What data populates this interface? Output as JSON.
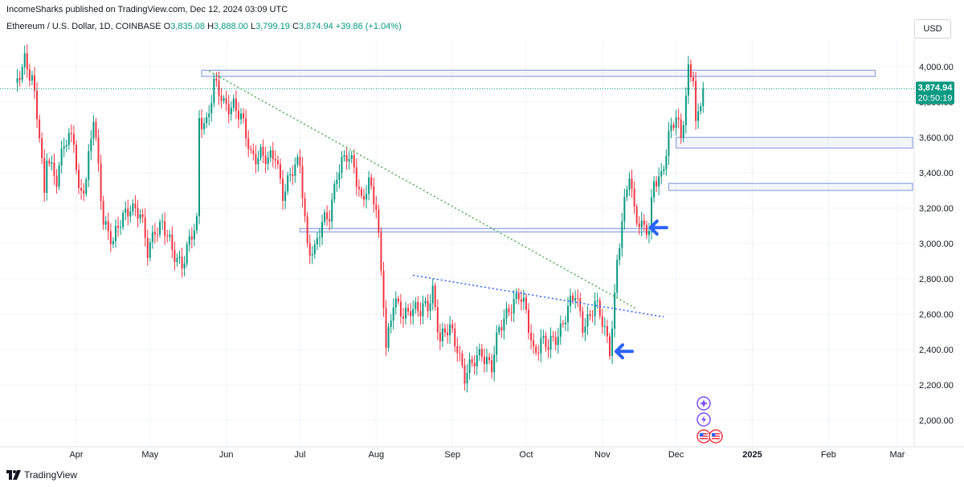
{
  "header": {
    "publisher": "IncomeSharks published on TradingView.com, Dec 12, 2024 03:09 UTC",
    "symbol_title": "Ethereum / U.S. Dollar, 1D, COINBASE",
    "open_label": "O",
    "open_value": "3,835.08",
    "high_label": "H",
    "high_value": "3,888.00",
    "low_label": "L",
    "low_value": "3,799.19",
    "close_label": "C",
    "close_value": "3,874.94",
    "change_value": "+39.86 (+1.04%)",
    "currency": "USD"
  },
  "price_tag": {
    "price": "3,874.94",
    "countdown": "20:50:19"
  },
  "footer": {
    "brand": "TradingView"
  },
  "colors": {
    "up": "#089981",
    "down": "#f23645",
    "zone": "#90a4e0",
    "accent": "#2962ff"
  },
  "icons": [
    "sparkle-event-icon",
    "lightning-event-icon",
    "us-flag-event-icon",
    "us-flag-event-icon"
  ],
  "chart_data": {
    "type": "candlestick",
    "title": "Ethereum / U.S. Dollar, 1D, COINBASE",
    "x_ticks": [
      "Apr",
      "May",
      "Jun",
      "Jul",
      "Aug",
      "Sep",
      "Oct",
      "Nov",
      "Dec",
      "2025",
      "Feb",
      "Mar"
    ],
    "y_ticks": [
      "2,000.00",
      "2,200.00",
      "2,400.00",
      "2,600.00",
      "2,800.00",
      "3,000.00",
      "3,200.00",
      "3,400.00",
      "3,600.00",
      "3,800.00",
      "4,000.00"
    ],
    "ylim": [
      1920,
      4100
    ],
    "last_close": 3874.94,
    "path": [
      [
        "2024-03-07",
        3850
      ],
      [
        "2024-03-11",
        4050
      ],
      [
        "2024-03-14",
        3950
      ],
      [
        "2024-03-17",
        3600
      ],
      [
        "2024-03-19",
        3250
      ],
      [
        "2024-03-20",
        3500
      ],
      [
        "2024-03-24",
        3380
      ],
      [
        "2024-03-27",
        3550
      ],
      [
        "2024-03-31",
        3600
      ],
      [
        "2024-04-02",
        3300
      ],
      [
        "2024-04-05",
        3350
      ],
      [
        "2024-04-08",
        3700
      ],
      [
        "2024-04-12",
        3150
      ],
      [
        "2024-04-16",
        3000
      ],
      [
        "2024-04-20",
        3150
      ],
      [
        "2024-04-23",
        3230
      ],
      [
        "2024-04-27",
        3150
      ],
      [
        "2024-04-30",
        2950
      ],
      [
        "2024-05-03",
        3100
      ],
      [
        "2024-05-06",
        3100
      ],
      [
        "2024-05-10",
        2950
      ],
      [
        "2024-05-14",
        2900
      ],
      [
        "2024-05-17",
        3000
      ],
      [
        "2024-05-20",
        3100
      ],
      [
        "2024-05-21",
        3700
      ],
      [
        "2024-05-24",
        3700
      ],
      [
        "2024-05-27",
        3900
      ],
      [
        "2024-05-31",
        3780
      ],
      [
        "2024-06-04",
        3800
      ],
      [
        "2024-06-07",
        3700
      ],
      [
        "2024-06-11",
        3500
      ],
      [
        "2024-06-15",
        3520
      ],
      [
        "2024-06-18",
        3450
      ],
      [
        "2024-06-21",
        3500
      ],
      [
        "2024-06-24",
        3300
      ],
      [
        "2024-06-28",
        3400
      ],
      [
        "2024-07-01",
        3450
      ],
      [
        "2024-07-04",
        3000
      ],
      [
        "2024-07-07",
        2950
      ],
      [
        "2024-07-10",
        3100
      ],
      [
        "2024-07-13",
        3180
      ],
      [
        "2024-07-16",
        3400
      ],
      [
        "2024-07-20",
        3480
      ],
      [
        "2024-07-23",
        3450
      ],
      [
        "2024-07-26",
        3250
      ],
      [
        "2024-07-29",
        3320
      ],
      [
        "2024-08-01",
        3200
      ],
      [
        "2024-08-04",
        2700
      ],
      [
        "2024-08-05",
        2420
      ],
      [
        "2024-08-08",
        2650
      ],
      [
        "2024-08-12",
        2600
      ],
      [
        "2024-08-15",
        2650
      ],
      [
        "2024-08-19",
        2600
      ],
      [
        "2024-08-22",
        2650
      ],
      [
        "2024-08-24",
        2750
      ],
      [
        "2024-08-27",
        2450
      ],
      [
        "2024-08-31",
        2510
      ],
      [
        "2024-09-03",
        2430
      ],
      [
        "2024-09-06",
        2250
      ],
      [
        "2024-09-09",
        2300
      ],
      [
        "2024-09-13",
        2400
      ],
      [
        "2024-09-17",
        2300
      ],
      [
        "2024-09-20",
        2500
      ],
      [
        "2024-09-24",
        2650
      ],
      [
        "2024-09-28",
        2700
      ],
      [
        "2024-10-01",
        2600
      ],
      [
        "2024-10-04",
        2400
      ],
      [
        "2024-10-07",
        2450
      ],
      [
        "2024-10-10",
        2400
      ],
      [
        "2024-10-14",
        2500
      ],
      [
        "2024-10-17",
        2600
      ],
      [
        "2024-10-21",
        2700
      ],
      [
        "2024-10-24",
        2550
      ],
      [
        "2024-10-27",
        2600
      ],
      [
        "2024-10-29",
        2650
      ],
      [
        "2024-11-01",
        2550
      ],
      [
        "2024-11-04",
        2420
      ],
      [
        "2024-11-06",
        2700
      ],
      [
        "2024-11-07",
        2900
      ],
      [
        "2024-11-09",
        3100
      ],
      [
        "2024-11-12",
        3400
      ],
      [
        "2024-11-14",
        3200
      ],
      [
        "2024-11-17",
        3100
      ],
      [
        "2024-11-20",
        3050
      ],
      [
        "2024-11-22",
        3350
      ],
      [
        "2024-11-25",
        3400
      ],
      [
        "2024-11-28",
        3600
      ],
      [
        "2024-12-01",
        3700
      ],
      [
        "2024-12-03",
        3600
      ],
      [
        "2024-12-05",
        3850
      ],
      [
        "2024-12-06",
        4000
      ],
      [
        "2024-12-08",
        3950
      ],
      [
        "2024-12-09",
        3650
      ],
      [
        "2024-12-10",
        3700
      ],
      [
        "2024-12-12",
        3875
      ]
    ],
    "zones": [
      {
        "from": "2024-05-22",
        "to": "2025-02-20",
        "low": 3945,
        "high": 3980
      },
      {
        "from": "2024-07-01",
        "to": "2024-11-22",
        "low": 3065,
        "high": 3085
      },
      {
        "from": "2024-12-01",
        "to": "2025-03-24",
        "low": 3540,
        "high": 3600
      },
      {
        "from": "2024-11-28",
        "to": "2025-03-24",
        "low": 3300,
        "high": 3340
      }
    ],
    "trendlines": [
      {
        "style": "dotted",
        "color": "#4caf50",
        "from": [
          "2024-05-25",
          3975
        ],
        "to": [
          "2024-11-15",
          2630
        ]
      },
      {
        "style": "dotted",
        "color": "#2962ff",
        "from": [
          "2024-08-16",
          2820
        ],
        "to": [
          "2024-11-26",
          2585
        ]
      }
    ],
    "markers": [
      {
        "shape": "arrow-left",
        "date": "2024-11-18",
        "price": 3090
      },
      {
        "shape": "arrow-left",
        "date": "2024-11-04",
        "price": 2390
      }
    ]
  }
}
